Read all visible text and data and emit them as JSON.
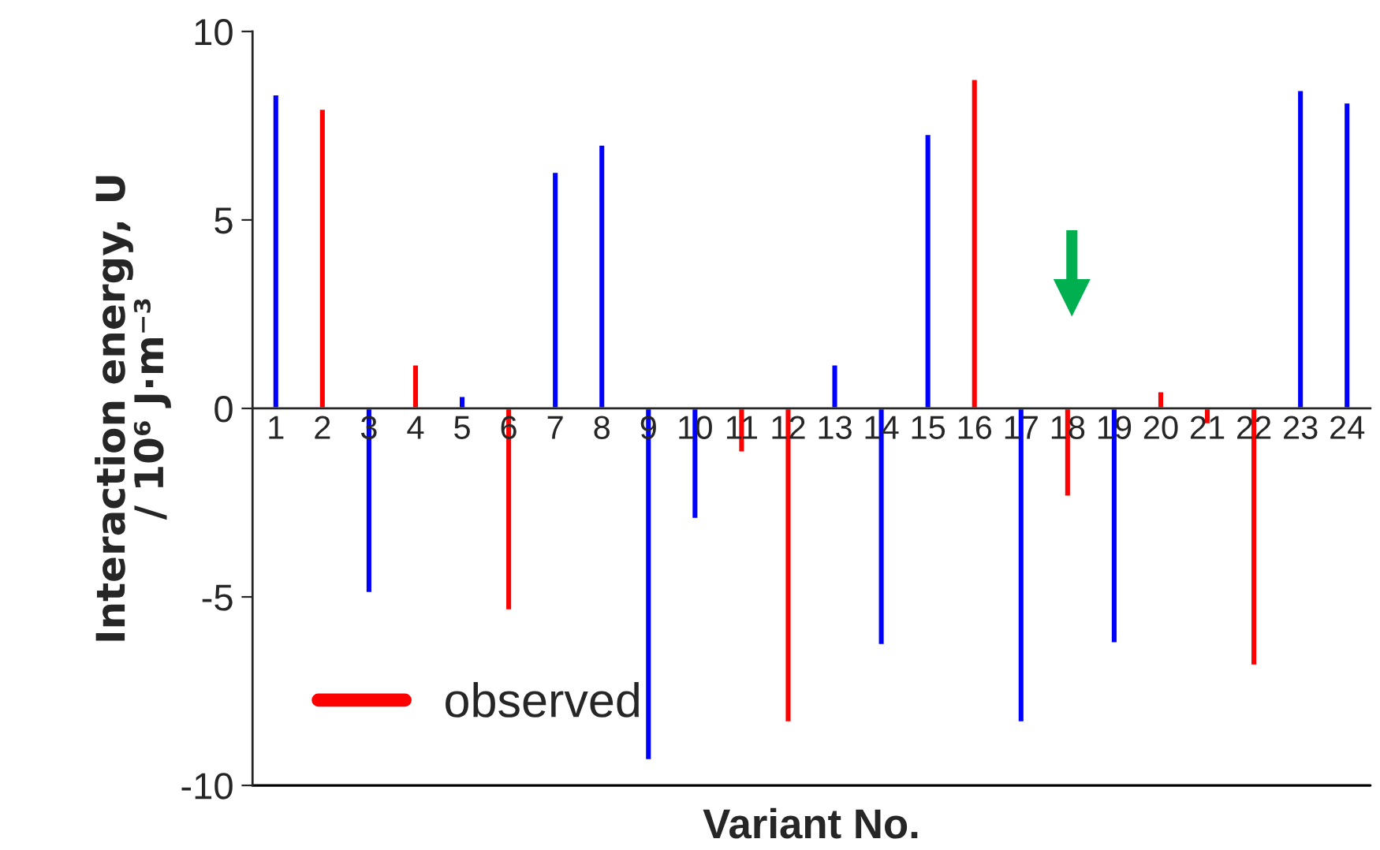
{
  "chart_data": {
    "type": "bar",
    "xlabel": "Variant No.",
    "ylabel": "Interaction energy, U\n/ 10⁶ J·m⁻³",
    "categories": [
      "1",
      "2",
      "3",
      "4",
      "5",
      "6",
      "7",
      "8",
      "9",
      "10",
      "11",
      "12",
      "13",
      "14",
      "15",
      "16",
      "17",
      "18",
      "19",
      "20",
      "21",
      "22",
      "23",
      "24"
    ],
    "series": [
      {
        "color": "#0000ff",
        "values": [
          8.33,
          null,
          -4.9,
          null,
          0.33,
          null,
          6.28,
          7.0,
          -9.33,
          -2.93,
          null,
          null,
          1.17,
          -6.28,
          7.28,
          null,
          -8.33,
          null,
          -6.23,
          null,
          null,
          null,
          8.45,
          8.12
        ]
      },
      {
        "name": "observed",
        "color": "#ff0000",
        "values": [
          null,
          7.95,
          null,
          1.17,
          null,
          -5.36,
          null,
          null,
          null,
          null,
          -1.17,
          -8.33,
          null,
          null,
          null,
          8.74,
          null,
          -2.34,
          null,
          0.46,
          -0.42,
          -6.82,
          null,
          null
        ]
      }
    ],
    "ylim": [
      -10,
      10
    ],
    "yticks": [
      -10,
      -5,
      0,
      5,
      10
    ],
    "ref_lines": [
      {
        "axis": "y",
        "value": -10,
        "color": "#000000"
      }
    ],
    "legend": "bottom left",
    "grid": false
  }
}
